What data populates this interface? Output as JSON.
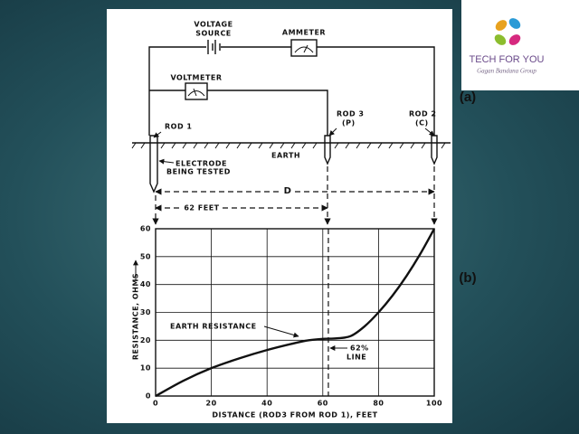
{
  "logo": {
    "title": "TECH FOR YOU",
    "subtitle": "Gagan Bandana Group"
  },
  "diagram": {
    "panel_a": "(a)",
    "panel_b": "(b)",
    "voltage_source": [
      "VOLTAGE",
      "SOURCE"
    ],
    "ammeter": "AMMETER",
    "voltmeter": "VOLTMETER",
    "rod1": "ROD 1",
    "rod3": [
      "ROD 3",
      "(P)"
    ],
    "rod2": [
      "ROD 2",
      "(C)"
    ],
    "earth": "EARTH",
    "electrode": [
      "ELECTRODE",
      "BEING TESTED"
    ],
    "d": "D",
    "feet62": "62 FEET"
  },
  "chart_data": {
    "type": "line",
    "xlabel": "DISTANCE (ROD3 FROM ROD 1), FEET",
    "ylabel": "RESISTANCE, OHMS",
    "x": [
      0,
      10,
      20,
      30,
      40,
      50,
      55,
      60,
      65,
      70,
      75,
      80,
      85,
      90,
      95,
      100
    ],
    "values": [
      0,
      5.5,
      10,
      13.5,
      16.5,
      19,
      20,
      20.5,
      20.7,
      21.5,
      25,
      30,
      36,
      43,
      51,
      60
    ],
    "xlim": [
      0,
      100
    ],
    "ylim": [
      0,
      60
    ],
    "xticks": [
      0,
      20,
      40,
      60,
      80,
      100
    ],
    "yticks": [
      0,
      10,
      20,
      30,
      40,
      50,
      60
    ],
    "grid": true,
    "vline": 62,
    "annotations": [
      "EARTH RESISTANCE",
      "62%",
      "LINE"
    ]
  }
}
